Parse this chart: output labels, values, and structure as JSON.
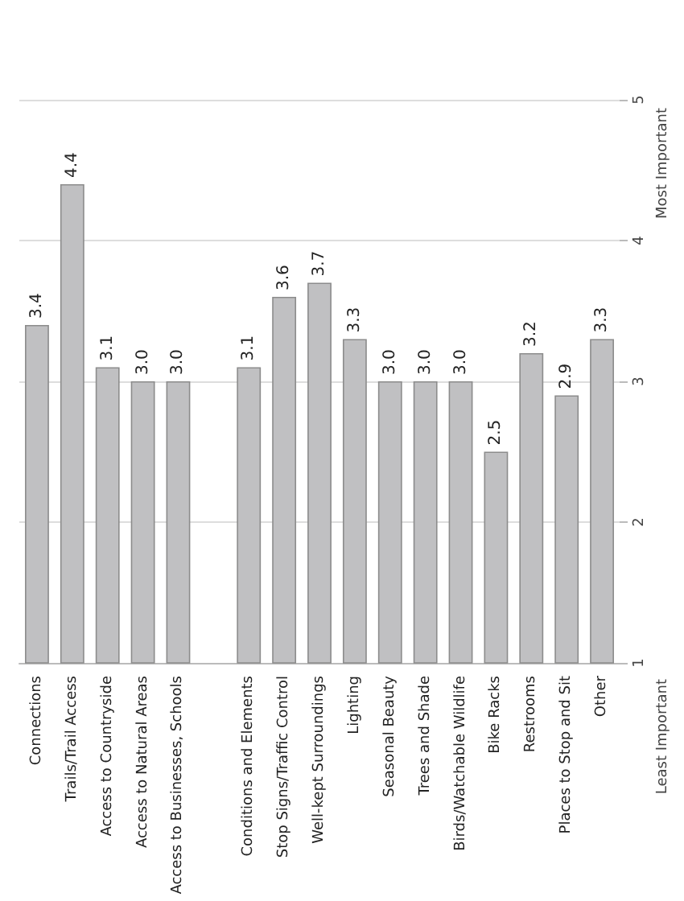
{
  "chart_data": {
    "type": "bar",
    "categories": [
      "Connections",
      "Trails/Trail Access",
      "Access to Countryside",
      "Access to Natural Areas",
      "Access to Businesses, Schools",
      null,
      "Conditions and Elements",
      "Stop Signs/Traffic Control",
      "Well-kept Surroundings",
      "Lighting",
      "Seasonal Beauty",
      "Trees and Shade",
      "Birds/Watchable Wildlife",
      "Bike Racks",
      "Restrooms",
      "Places to Stop and Sit",
      "Other"
    ],
    "values": [
      3.4,
      4.4,
      3.1,
      3.0,
      3.0,
      null,
      3.1,
      3.6,
      3.7,
      3.3,
      3.0,
      3.0,
      3.0,
      2.5,
      3.2,
      2.9,
      3.3
    ],
    "value_labels": [
      "3.4",
      "4.4",
      "3.1",
      "3.0",
      "3.0",
      null,
      "3.1",
      "3.6",
      "3.7",
      "3.3",
      "3.0",
      "3.0",
      "3.0",
      "2.5",
      "3.2",
      "2.9",
      "3.3"
    ],
    "color": "#c0c0c2",
    "ylim": [
      1,
      5
    ],
    "yticks": [
      1,
      2,
      3,
      4,
      5
    ],
    "grid": "y",
    "annotations": [
      "Least Important",
      "Most Important"
    ]
  }
}
